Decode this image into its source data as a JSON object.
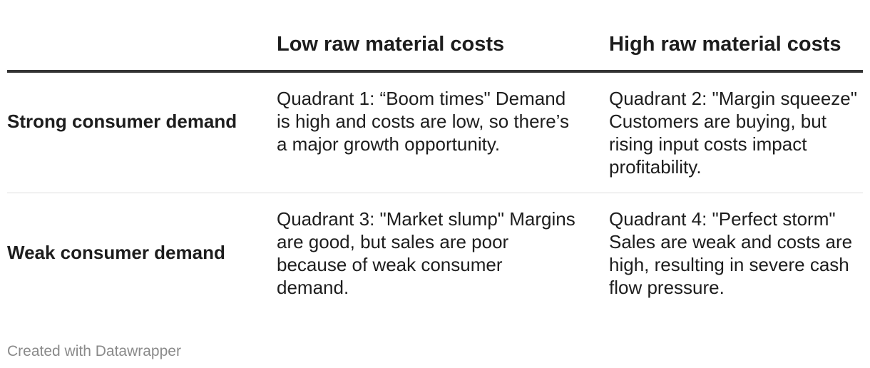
{
  "table": {
    "columns": [
      "",
      "Low raw material costs",
      "High raw material costs"
    ],
    "rows": [
      {
        "label": "Strong consumer demand",
        "cells": [
          "Quadrant 1: “Boom times\" Demand is high and costs are low, so there’s a major growth opportunity.",
          "Quadrant 2: \"Margin squeeze\" Customers are buying, but rising input costs impact profitability."
        ]
      },
      {
        "label": "Weak consumer demand",
        "cells": [
          "Quadrant 3: \"Market slump\" Margins are good, but sales are poor because of weak consumer demand.",
          "Quadrant 4: \"Perfect storm\" Sales are weak and costs are high, resulting in severe cash flow pressure."
        ]
      }
    ]
  },
  "footer": {
    "credit": "Created with Datawrapper"
  }
}
